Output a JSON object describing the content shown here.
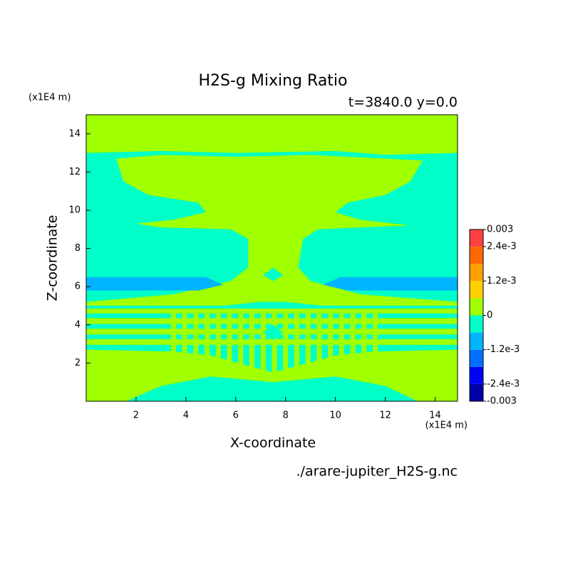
{
  "chart_data": {
    "type": "contour",
    "title": "H2S-g Mixing Ratio",
    "subtitle": "t=3840.0 y=0.0",
    "x_label": "X-coordinate",
    "y_label": "Z-coordinate",
    "x_unit": "(x1E4 m)",
    "y_unit": "(x1E4 m)",
    "file_label": "./arare-jupiter_H2S-g.nc",
    "xlim": [
      0,
      14.9
    ],
    "ylim": [
      0,
      15
    ],
    "xticks": [
      2,
      4,
      6,
      8,
      10,
      12,
      14
    ],
    "yticks": [
      2,
      4,
      6,
      8,
      10,
      12,
      14
    ],
    "colorbar": {
      "levels": [
        -0.003,
        -0.0024,
        -0.0018,
        -0.0012,
        -0.0006,
        0,
        0.0006,
        0.0012,
        0.0018,
        0.0024,
        0.003
      ],
      "colors": [
        "#0000a8",
        "#0000ff",
        "#0070ff",
        "#00b4ff",
        "#00ffc8",
        "#a0ff00",
        "#ffd000",
        "#ffa000",
        "#ff6a00",
        "#ff4040"
      ],
      "ticks": [
        0.003,
        {
          "value": 0.0024,
          "label": "2.4e-3"
        },
        {
          "value": 0.0012,
          "label": "1.2e-3"
        },
        0,
        {
          "value": -0.0012,
          "label": "-1.2e-3"
        },
        {
          "value": -0.0024,
          "label": "-2.4e-3"
        },
        -0.003
      ]
    }
  }
}
